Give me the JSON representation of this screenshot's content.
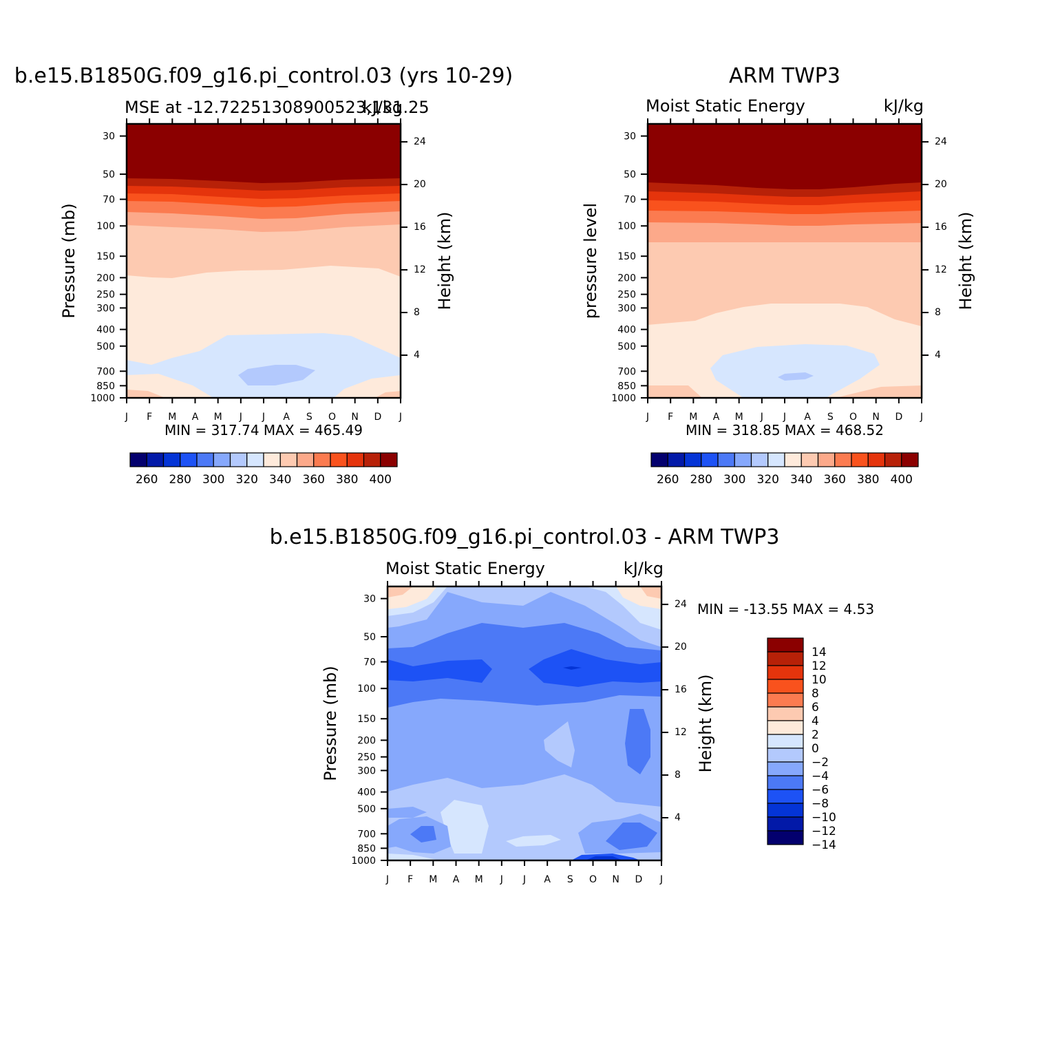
{
  "months": [
    "J",
    "F",
    "M",
    "A",
    "M",
    "J",
    "J",
    "A",
    "S",
    "O",
    "N",
    "D",
    "J"
  ],
  "pressure_ticks": [
    "30",
    "50",
    "70",
    "100",
    "150",
    "200",
    "250",
    "300",
    "400",
    "500",
    "700",
    "850",
    "1000"
  ],
  "height_ticks": [
    "24",
    "20",
    "16",
    "12",
    "8",
    "4"
  ],
  "mse_colors": [
    "#03006e",
    "#0219a8",
    "#0434d6",
    "#1d52f5",
    "#4c79f6",
    "#86a8fc",
    "#b3c9fd",
    "#d6e6fe",
    "#feeadb",
    "#fdcab1",
    "#fca98a",
    "#fb7b50",
    "#f9521d",
    "#e5340c",
    "#b72108",
    "#8b0000"
  ],
  "mse_labels": [
    "260",
    "280",
    "300",
    "320",
    "340",
    "360",
    "380",
    "400"
  ],
  "diff_colors": [
    "#03006e",
    "#0219a8",
    "#0434d6",
    "#1d52f5",
    "#4c79f6",
    "#86a8fc",
    "#b3c9fd",
    "#d6e6fe",
    "#feeadb",
    "#fdcab1",
    "#fb7b50",
    "#f9521d",
    "#e5340c",
    "#b72108",
    "#8b0000"
  ],
  "diff_labels": [
    "14",
    "12",
    "10",
    "8",
    "6",
    "4",
    "2",
    "0",
    "−2",
    "−4",
    "−6",
    "−8",
    "−10",
    "−12",
    "−14"
  ],
  "panel_model": {
    "title": "b.e15.B1850G.f09_g16.pi_control.03 (yrs 10-29)",
    "subtitle_left": "MSE at -12.72251308900523,131.25",
    "subtitle_right": "kJ/kg",
    "ylabel": "Pressure (mb)",
    "ylabel_right": "Height (km)",
    "minmax": "MIN = 317.74  MAX = 465.49"
  },
  "panel_obs": {
    "title": "ARM TWP3",
    "subtitle_left": "Moist Static Energy",
    "subtitle_right": "kJ/kg",
    "ylabel": "pressure level",
    "ylabel_right": "Height (km)",
    "minmax": "MIN = 318.85  MAX = 468.52"
  },
  "panel_diff": {
    "title": "b.e15.B1850G.f09_g16.pi_control.03 - ARM TWP3",
    "subtitle_left": "Moist Static Energy",
    "subtitle_right": "kJ/kg",
    "ylabel": "Pressure (mb)",
    "ylabel_right": "Height (km)",
    "minmax": "MIN = -13.55  MAX =    4.53"
  },
  "chart_data": [
    {
      "type": "heatmap",
      "title": "b.e15.B1850G.f09_g16.pi_control.03 (yrs 10-29)",
      "subtitle": "MSE at -12.72251308900523,131.25",
      "units": "kJ/kg",
      "x": [
        "J",
        "F",
        "M",
        "A",
        "M",
        "J",
        "J",
        "A",
        "S",
        "O",
        "N",
        "D",
        "J"
      ],
      "y_pressure_mb": [
        30,
        50,
        70,
        100,
        150,
        200,
        250,
        300,
        400,
        500,
        700,
        850,
        1000
      ],
      "ylabel": "Pressure (mb)",
      "ylabel_right": "Height (km)",
      "levels": [
        260,
        270,
        280,
        290,
        300,
        310,
        320,
        330,
        340,
        350,
        360,
        370,
        380,
        390,
        400
      ],
      "min": 317.74,
      "max": 465.49,
      "boundary_pressure_mb": {
        "400": [
          54,
          54,
          54,
          55,
          56,
          57,
          57,
          57,
          56,
          55,
          54,
          54,
          54
        ],
        "390": [
          60,
          60,
          60,
          61,
          62,
          63,
          63,
          63,
          62,
          61,
          60,
          60,
          60
        ],
        "380": [
          66,
          66,
          66,
          67,
          68,
          69,
          69,
          69,
          68,
          67,
          66,
          66,
          66
        ],
        "370": [
          72,
          72,
          72,
          73,
          74,
          75,
          75,
          75,
          74,
          73,
          72,
          72,
          72
        ],
        "360": [
          78,
          78,
          78,
          79,
          80,
          82,
          82,
          82,
          81,
          79,
          78,
          78,
          78
        ],
        "350": [
          88,
          88,
          88,
          89,
          91,
          93,
          94,
          93,
          92,
          90,
          88,
          88,
          88
        ],
        "340": [
          205,
          205,
          210,
          190,
          180,
          176,
          178,
          180,
          180,
          180,
          182,
          198,
          205
        ],
        "330": [
          620,
          650,
          550,
          520,
          440,
          430,
          430,
          430,
          430,
          420,
          440,
          520,
          560
        ],
        "320": [
          null,
          null,
          null,
          null,
          null,
          640,
          640,
          650,
          650,
          null,
          null,
          null,
          null
        ],
        "310": [
          900,
          900,
          900,
          950,
          1000,
          1000,
          1000,
          1000,
          1000,
          1000,
          1000,
          900,
          900
        ],
        "300": [
          960,
          960,
          970,
          1000,
          1000,
          1000,
          1000,
          1000,
          1000,
          1000,
          1000,
          960,
          940
        ]
      }
    },
    {
      "type": "heatmap",
      "title": "ARM TWP3",
      "subtitle": "Moist Static Energy",
      "units": "kJ/kg",
      "x": [
        "J",
        "F",
        "M",
        "A",
        "M",
        "J",
        "J",
        "A",
        "S",
        "O",
        "N",
        "D",
        "J"
      ],
      "y_pressure_mb": [
        30,
        50,
        70,
        100,
        150,
        200,
        250,
        300,
        400,
        500,
        700,
        850,
        1000
      ],
      "ylabel": "pressure level",
      "ylabel_right": "Height (km)",
      "levels": [
        260,
        270,
        280,
        290,
        300,
        310,
        320,
        330,
        340,
        350,
        360,
        370,
        380,
        390,
        400
      ],
      "min": 318.85,
      "max": 468.52,
      "boundary_pressure_mb": {
        "400": [
          56,
          57,
          58,
          59,
          60,
          61,
          62,
          62,
          61,
          60,
          58,
          57,
          56
        ],
        "390": [
          63,
          64,
          65,
          66,
          67,
          68,
          69,
          69,
          68,
          67,
          65,
          64,
          63
        ],
        "380": [
          71,
          72,
          73,
          74,
          75,
          76,
          77,
          77,
          76,
          75,
          73,
          72,
          71
        ],
        "370": [
          80,
          81,
          82,
          83,
          84,
          86,
          87,
          87,
          86,
          84,
          82,
          81,
          80
        ],
        "360": [
          95,
          96,
          97,
          98,
          100,
          103,
          104,
          104,
          103,
          100,
          98,
          96,
          95
        ],
        "350": [
          118,
          118,
          118,
          118,
          118,
          118,
          118,
          118,
          118,
          118,
          118,
          118,
          118
        ],
        "340": [
          400,
          390,
          370,
          320,
          300,
          290,
          280,
          280,
          280,
          290,
          340,
          380,
          380
        ],
        "330": [
          null,
          null,
          null,
          null,
          520,
          500,
          480,
          480,
          500,
          520,
          null,
          null,
          null
        ],
        "320": [
          null,
          null,
          null,
          null,
          null,
          null,
          720,
          720,
          null,
          null,
          null,
          null,
          null
        ],
        "310": [
          880,
          880,
          920,
          1000,
          1000,
          1000,
          1000,
          1000,
          1000,
          970,
          900,
          880,
          880
        ]
      }
    },
    {
      "type": "heatmap",
      "title": "b.e15.B1850G.f09_g16.pi_control.03 - ARM TWP3",
      "subtitle": "Moist Static Energy",
      "units": "kJ/kg",
      "x": [
        "J",
        "F",
        "M",
        "A",
        "M",
        "J",
        "J",
        "A",
        "S",
        "O",
        "N",
        "D",
        "J"
      ],
      "y_pressure_mb": [
        30,
        50,
        70,
        100,
        150,
        200,
        250,
        300,
        400,
        500,
        700,
        850,
        1000
      ],
      "ylabel": "Pressure (mb)",
      "ylabel_right": "Height (km)",
      "levels": [
        -14,
        -12,
        -10,
        -8,
        -6,
        -4,
        -2,
        0,
        2,
        4,
        6,
        8,
        10,
        12,
        14
      ],
      "min": -13.55,
      "max": 4.53,
      "features": [
        {
          "value_range": [
            0,
            2
          ],
          "region": "corners near 30 mb, Jan and Dec"
        },
        {
          "value_range": [
            -8,
            -6
          ],
          "region": "70-100 mb across all months"
        },
        {
          "value_range": [
            -10,
            -8
          ],
          "region": "70-90 mb core, Jan-Mar and Sep-Dec"
        },
        {
          "value_range": [
            -4,
            -2
          ],
          "region": "300-700 mb"
        },
        {
          "value_range": [
            -2,
            0
          ],
          "region": "500-700 mb, Mar-May"
        },
        {
          "value_range": [
            -14,
            -12
          ],
          "region": "near 1000 mb, Oct"
        }
      ]
    }
  ]
}
